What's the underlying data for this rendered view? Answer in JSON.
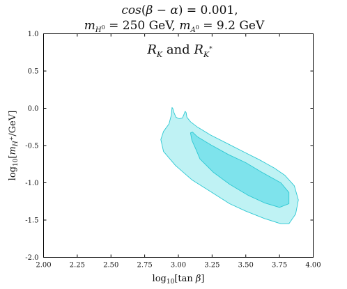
{
  "chart_data": {
    "type": "area",
    "title_lines": [
      "cos(β − α) = 0.001,",
      "m_{H⁰} = 250 GeV,  m_{A⁰} = 9.2 GeV"
    ],
    "annotation": "R_K and R_{K*}",
    "xlabel": "log₁₀[tan β]",
    "ylabel": "log₁₀[m_{H⁺}/GeV]",
    "xlim": [
      2.0,
      4.0
    ],
    "ylim": [
      -2.0,
      1.0
    ],
    "xticks": [
      "2.00",
      "2.25",
      "2.50",
      "2.75",
      "3.00",
      "3.25",
      "3.50",
      "3.75",
      "4.00"
    ],
    "yticks": [
      "1.0",
      "0.5",
      "0.0",
      "-0.5",
      "-1.0",
      "-1.5",
      "-2.0"
    ],
    "grid": false,
    "series": [
      {
        "fill": "#bff2f4",
        "stroke": "#2cc8d2",
        "points": [
          [
            2.953,
            0.01
          ],
          [
            2.958,
            0.0
          ],
          [
            2.966,
            -0.05
          ],
          [
            2.982,
            -0.12
          ],
          [
            3.005,
            -0.14
          ],
          [
            3.03,
            -0.13
          ],
          [
            3.042,
            -0.08
          ],
          [
            3.05,
            -0.04
          ],
          [
            3.058,
            -0.06
          ],
          [
            3.063,
            -0.12
          ],
          [
            3.09,
            -0.18
          ],
          [
            3.14,
            -0.25
          ],
          [
            3.24,
            -0.36
          ],
          [
            3.36,
            -0.47
          ],
          [
            3.48,
            -0.58
          ],
          [
            3.6,
            -0.69
          ],
          [
            3.71,
            -0.8
          ],
          [
            3.79,
            -0.9
          ],
          [
            3.86,
            -1.04
          ],
          [
            3.89,
            -1.23
          ],
          [
            3.87,
            -1.42
          ],
          [
            3.82,
            -1.55
          ],
          [
            3.76,
            -1.55
          ],
          [
            3.64,
            -1.48
          ],
          [
            3.5,
            -1.38
          ],
          [
            3.38,
            -1.28
          ],
          [
            3.24,
            -1.12
          ],
          [
            3.1,
            -0.96
          ],
          [
            2.98,
            -0.77
          ],
          [
            2.89,
            -0.58
          ],
          [
            2.87,
            -0.42
          ],
          [
            2.89,
            -0.31
          ],
          [
            2.93,
            -0.21
          ],
          [
            2.948,
            -0.09
          ]
        ]
      },
      {
        "fill": "#7ee3ec",
        "stroke": "#2cc8d2",
        "points": [
          [
            3.09,
            -0.33
          ],
          [
            3.105,
            -0.32
          ],
          [
            3.14,
            -0.38
          ],
          [
            3.24,
            -0.49
          ],
          [
            3.37,
            -0.62
          ],
          [
            3.5,
            -0.73
          ],
          [
            3.62,
            -0.86
          ],
          [
            3.76,
            -1.0
          ],
          [
            3.82,
            -1.13
          ],
          [
            3.82,
            -1.28
          ],
          [
            3.75,
            -1.33
          ],
          [
            3.64,
            -1.27
          ],
          [
            3.52,
            -1.17
          ],
          [
            3.38,
            -1.02
          ],
          [
            3.26,
            -0.86
          ],
          [
            3.16,
            -0.68
          ],
          [
            3.13,
            -0.55
          ],
          [
            3.1,
            -0.43
          ]
        ]
      }
    ]
  }
}
